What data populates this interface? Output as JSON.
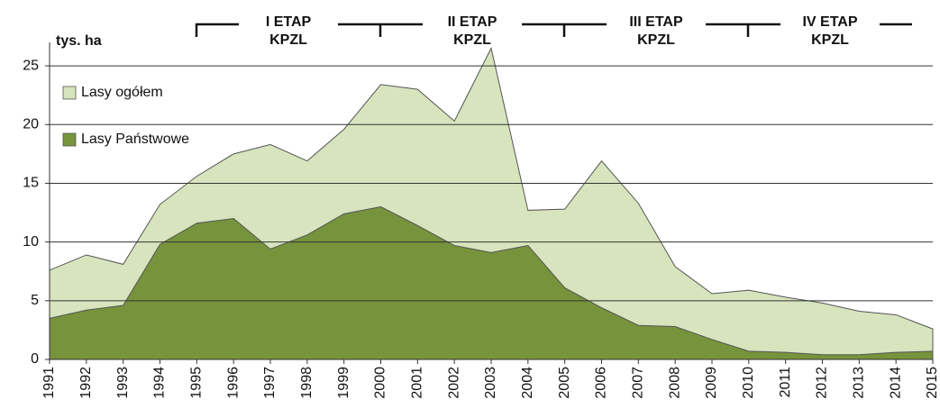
{
  "chart_data": {
    "type": "area",
    "y_unit_label": "tys. ha",
    "categories": [
      "1991",
      "1992",
      "1993",
      "1994",
      "1995",
      "1996",
      "1997",
      "1998",
      "1999",
      "2000",
      "2001",
      "2002",
      "2003",
      "2004",
      "2005",
      "2006",
      "2007",
      "2008",
      "2009",
      "2010",
      "2011",
      "2012",
      "2013",
      "2014",
      "2015"
    ],
    "series": [
      {
        "name": "Lasy ogółem",
        "color": "#d7e4bd",
        "values": [
          7.6,
          8.9,
          8.1,
          13.2,
          15.6,
          17.5,
          18.3,
          16.9,
          19.6,
          23.4,
          23.0,
          20.3,
          26.5,
          12.7,
          12.8,
          16.9,
          13.3,
          7.9,
          5.6,
          5.9,
          5.3,
          4.8,
          4.1,
          3.8,
          2.6
        ]
      },
      {
        "name": "Lasy Państwowe",
        "color": "#77933c",
        "values": [
          3.5,
          4.2,
          4.6,
          9.8,
          11.6,
          12.0,
          9.4,
          10.6,
          12.4,
          13.0,
          11.4,
          9.7,
          9.1,
          9.7,
          6.1,
          4.4,
          2.9,
          2.8,
          1.7,
          0.7,
          0.6,
          0.4,
          0.4,
          0.6,
          0.7
        ]
      }
    ],
    "ylim": [
      0,
      27
    ],
    "yticks": [
      0,
      5,
      10,
      15,
      20,
      25
    ],
    "grid": true,
    "annotations": [
      [
        "I ETAP",
        "KPZL"
      ],
      [
        "II ETAP",
        "KPZL"
      ],
      [
        "III ETAP",
        "KPZL"
      ],
      [
        "IV ETAP",
        "KPZL"
      ]
    ]
  }
}
